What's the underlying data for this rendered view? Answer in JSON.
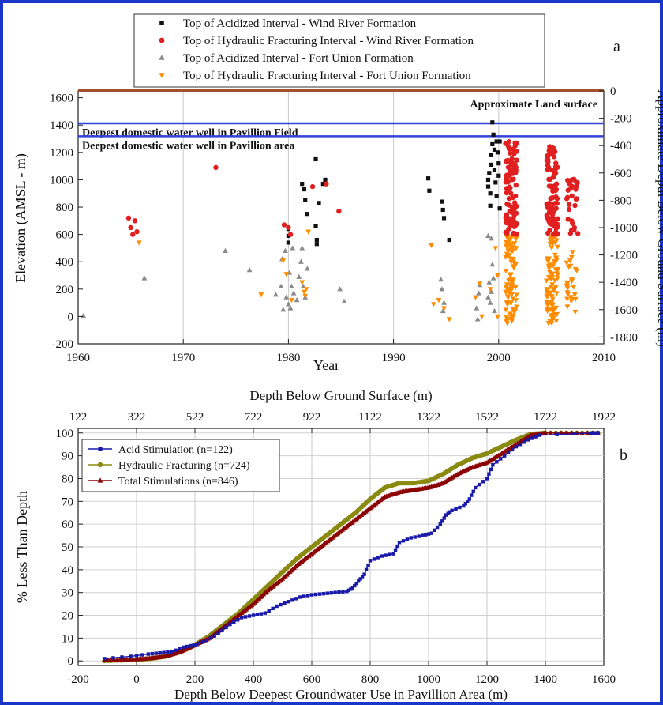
{
  "chart_data": [
    {
      "panel": "a",
      "type": "scatter",
      "xlabel": "Year",
      "ylabel": "Elevation (AMSL - m)",
      "y2label": "Approximate Depth Below Ground Surface (m)",
      "xlim": [
        1960,
        2010
      ],
      "ylim": [
        -200,
        1650
      ],
      "y2lim": [
        -1850,
        0
      ],
      "xticks": [
        "1960",
        "1970",
        "1980",
        "1990",
        "2000",
        "2010"
      ],
      "yticks": [
        "-200",
        "0",
        "200",
        "400",
        "600",
        "800",
        "1000",
        "1200",
        "1400",
        "1600"
      ],
      "y2ticks": [
        "0",
        "-200",
        "-400",
        "-600",
        "-800",
        "-1000",
        "-1200",
        "-1400",
        "-1600",
        "-1800"
      ],
      "panel_label": "a",
      "reference_lines": [
        {
          "label": "Approximate Land surface",
          "y": 1650,
          "color": "#a0522d"
        },
        {
          "label": "Deepest domestic water well in Pavillion Field",
          "y": 1413,
          "color": "#3344dd"
        },
        {
          "label": "Deepest domestic water well in Pavillion area",
          "y": 1318,
          "color": "#3344dd"
        }
      ],
      "series": [
        {
          "name": "Top of Acidized Interval - Wind River Formation",
          "marker": "square",
          "color": "#111111",
          "points": [
            [
              1980,
              540
            ],
            [
              1980,
              590
            ],
            [
              1980,
              640
            ],
            [
              1981.3,
              970
            ],
            [
              1981.5,
              930
            ],
            [
              1981.6,
              850
            ],
            [
              1981.8,
              750
            ],
            [
              1982.6,
              1150
            ],
            [
              1982.6,
              660
            ],
            [
              1982.7,
              560
            ],
            [
              1982.7,
              530
            ],
            [
              1982.9,
              830
            ],
            [
              1983.3,
              970
            ],
            [
              1983.5,
              1000
            ],
            [
              1993.3,
              1010
            ],
            [
              1993.4,
              920
            ],
            [
              1994.6,
              840
            ],
            [
              1994.7,
              780
            ],
            [
              1994.8,
              720
            ],
            [
              1995.3,
              560
            ],
            [
              1999,
              1000
            ],
            [
              1999,
              950
            ],
            [
              1999.1,
              1050
            ],
            [
              1999.2,
              900
            ],
            [
              1999.2,
              810
            ],
            [
              1999.3,
              1110
            ],
            [
              1999.3,
              1180
            ],
            [
              1999.4,
              1260
            ],
            [
              1999.4,
              1420
            ],
            [
              1999.5,
              1330
            ],
            [
              1999.6,
              1220
            ],
            [
              1999.6,
              1070
            ],
            [
              1999.7,
              980
            ],
            [
              1999.8,
              880
            ],
            [
              1999.8,
              1280
            ],
            [
              1999.9,
              1200
            ],
            [
              2000,
              1120
            ],
            [
              2000,
              1030
            ],
            [
              2000.1,
              1280
            ],
            [
              2000.1,
              790
            ]
          ]
        },
        {
          "name": "Top of Hydraulic Fracturing Interval - Wind River Formation",
          "marker": "circle",
          "color": "#e02020",
          "points": [
            [
              1964.8,
              720
            ],
            [
              1965,
              650
            ],
            [
              1965.2,
              600
            ],
            [
              1965.4,
              700
            ],
            [
              1965.6,
              620
            ],
            [
              1973.1,
              1090
            ],
            [
              1979.6,
              670
            ],
            [
              1980,
              650
            ],
            [
              1980.2,
              600
            ],
            [
              1982.3,
              950
            ],
            [
              1983.6,
              970
            ],
            [
              1984.8,
              770
            ]
          ],
          "cluster_years": [
            2001.2,
            2005.1,
            2007
          ],
          "cluster_ranges": [
            [
              600,
              1280
            ],
            [
              600,
              1250
            ],
            [
              600,
              1030
            ]
          ]
        },
        {
          "name": "Top of Acidized Interval - Fort Union Formation",
          "marker": "triangle-up",
          "color": "#8a8a8a",
          "points": [
            [
              1960.5,
              5
            ],
            [
              1966.3,
              280
            ],
            [
              1974,
              480
            ],
            [
              1976.3,
              340
            ],
            [
              1978.8,
              160
            ],
            [
              1979.3,
              220
            ],
            [
              1979.4,
              420
            ],
            [
              1979.5,
              50
            ],
            [
              1979.7,
              480
            ],
            [
              1979.8,
              140
            ],
            [
              1980,
              90
            ],
            [
              1980.1,
              320
            ],
            [
              1980.2,
              60
            ],
            [
              1980.3,
              220
            ],
            [
              1980.4,
              500
            ],
            [
              1980.5,
              170
            ],
            [
              1980.8,
              120
            ],
            [
              1981,
              290
            ],
            [
              1981.2,
              400
            ],
            [
              1981.3,
              500
            ],
            [
              1981.4,
              220
            ],
            [
              1981.6,
              140
            ],
            [
              1981.8,
              350
            ],
            [
              1984.9,
              200
            ],
            [
              1985.3,
              110
            ],
            [
              1994.5,
              270
            ],
            [
              1994.6,
              200
            ],
            [
              1994.7,
              40
            ],
            [
              1994.8,
              100
            ],
            [
              1997.9,
              60
            ],
            [
              1998,
              -20
            ],
            [
              1998.1,
              170
            ],
            [
              1998.2,
              230
            ],
            [
              1999,
              140
            ],
            [
              1999,
              590
            ],
            [
              1999.1,
              250
            ],
            [
              1999.2,
              100
            ],
            [
              1999.3,
              570
            ],
            [
              1999.3,
              180
            ],
            [
              1999.4,
              380
            ],
            [
              1999.5,
              280
            ],
            [
              1999.6,
              40
            ]
          ]
        },
        {
          "name": "Top of Hydraulic Fracturing Interval - Fort Union Formation",
          "marker": "triangle-down",
          "color": "#ff8c00",
          "points": [
            [
              1965.8,
              540
            ],
            [
              1977.4,
              160
            ],
            [
              1979.5,
              410
            ],
            [
              1979.8,
              310
            ],
            [
              1980.3,
              120
            ],
            [
              1981.3,
              250
            ],
            [
              1981.5,
              180
            ],
            [
              1981.6,
              150
            ],
            [
              1981.7,
              200
            ],
            [
              1981.9,
              620
            ],
            [
              1993.6,
              520
            ],
            [
              1993.8,
              90
            ],
            [
              1994.3,
              120
            ],
            [
              1994.8,
              60
            ],
            [
              1995.3,
              -20
            ],
            [
              1997.8,
              140
            ],
            [
              1998.2,
              240
            ],
            [
              1998.4,
              0
            ],
            [
              1999.2,
              200
            ],
            [
              1999.7,
              500
            ],
            [
              1999.9,
              300
            ],
            [
              1999.9,
              0
            ]
          ],
          "cluster_years": [
            2001.2,
            2005.1,
            2007
          ],
          "cluster_ranges": [
            [
              -50,
              590
            ],
            [
              -50,
              590
            ],
            [
              0,
              500
            ]
          ]
        }
      ]
    },
    {
      "panel": "b",
      "type": "line",
      "xlabel": "Depth Below Deepest Groundwater Use in Pavillion Area (m)",
      "x2label": "Depth Below Ground Surface (m)",
      "ylabel": "% Less Than Depth",
      "xlim": [
        -200,
        1600
      ],
      "ylim": [
        -2,
        102
      ],
      "xticks": [
        "-200",
        "0",
        "200",
        "400",
        "600",
        "800",
        "1000",
        "1200",
        "1400",
        "1600"
      ],
      "x2ticks": [
        "122",
        "322",
        "522",
        "722",
        "922",
        "1122",
        "1322",
        "1522",
        "1722",
        "1922"
      ],
      "yticks": [
        "0",
        "10",
        "20",
        "30",
        "40",
        "50",
        "60",
        "70",
        "80",
        "90",
        "100"
      ],
      "panel_label": "b",
      "series": [
        {
          "name": "Acid Stimulation (n=122)",
          "color": "#1a1aa8",
          "marker": "square",
          "x": [
            -110,
            -20,
            40,
            80,
            120,
            160,
            200,
            240,
            280,
            320,
            360,
            400,
            440,
            480,
            520,
            560,
            600,
            640,
            680,
            720,
            740,
            760,
            780,
            800,
            840,
            880,
            900,
            940,
            980,
            1010,
            1040,
            1060,
            1080,
            1120,
            1140,
            1160,
            1200,
            1220,
            1260,
            1300,
            1340,
            1380,
            1560,
            1580
          ],
          "y": [
            1,
            2,
            3,
            3.5,
            4,
            6,
            7,
            9,
            12,
            16,
            19,
            20,
            21,
            24,
            26,
            28,
            29,
            29.5,
            30,
            30.5,
            32,
            35,
            38,
            44,
            46,
            47,
            52,
            54,
            55,
            56,
            60,
            64,
            66,
            68,
            71,
            76,
            80,
            86,
            90,
            94,
            97,
            99,
            100,
            100
          ]
        },
        {
          "name": "Hydraulic Fracturing (n=724)",
          "color": "#8a8a10",
          "marker": "circle",
          "x": [
            -110,
            0,
            50,
            100,
            150,
            200,
            250,
            300,
            350,
            400,
            450,
            500,
            550,
            600,
            650,
            700,
            750,
            800,
            850,
            900,
            950,
            1000,
            1050,
            1100,
            1150,
            1200,
            1250,
            1300,
            1350,
            1400,
            1580
          ],
          "y": [
            0,
            0.5,
            1,
            2,
            4,
            7,
            11,
            16,
            21,
            27,
            33,
            39,
            45,
            50,
            55,
            60,
            65,
            71,
            76,
            78,
            78,
            79,
            82,
            86,
            89,
            91,
            94,
            97,
            99.5,
            100,
            100
          ]
        },
        {
          "name": "Total Stimulations (n=846)",
          "color": "#8b0000",
          "marker": "triangle-up",
          "x": [
            -110,
            0,
            50,
            100,
            150,
            200,
            250,
            300,
            350,
            400,
            450,
            500,
            550,
            600,
            650,
            700,
            750,
            800,
            850,
            900,
            950,
            1000,
            1050,
            1100,
            1150,
            1200,
            1250,
            1300,
            1350,
            1400,
            1580
          ],
          "y": [
            0.5,
            0.7,
            1.2,
            2,
            4,
            7,
            10,
            15,
            20,
            25,
            31,
            36,
            42,
            47,
            52,
            57,
            62,
            67,
            72,
            74,
            75,
            76,
            78,
            82,
            85,
            87,
            91,
            95,
            99,
            100,
            100
          ]
        }
      ]
    }
  ]
}
